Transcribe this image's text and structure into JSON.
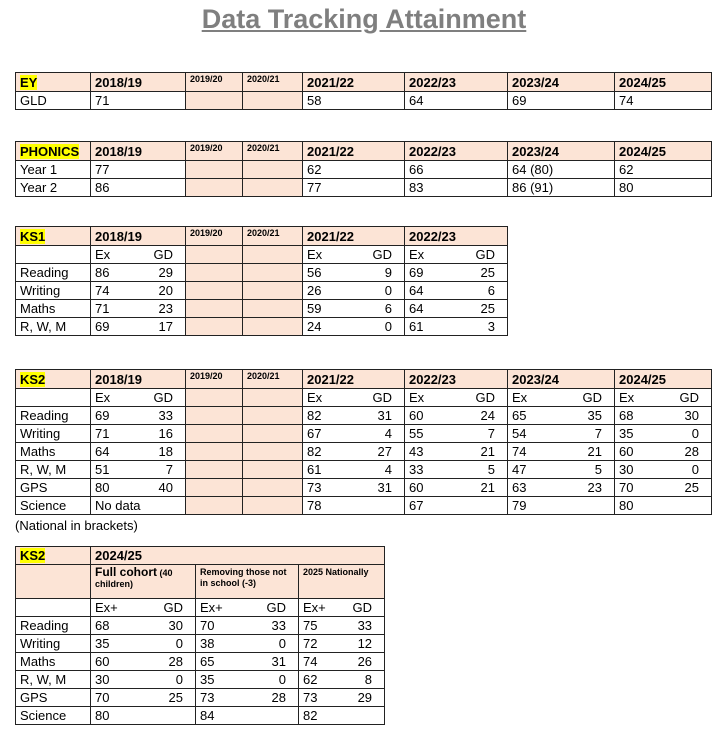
{
  "title": "Data Tracking Attainment",
  "tables": [
    {
      "label": "EY",
      "headers": [
        "2018/19",
        "2019/20",
        "2020/21",
        "2021/22",
        "2022/23",
        "2023/24",
        "2024/25"
      ],
      "rows": [
        {
          "label": "GLD",
          "cells": [
            71,
            null,
            null,
            58,
            64,
            69,
            74
          ]
        }
      ]
    },
    {
      "label": "PHONICS",
      "headers": [
        "2018/19",
        "2019/20",
        "2020/21",
        "2021/22",
        "2022/23",
        "2023/24",
        "2024/25"
      ],
      "rows": [
        {
          "label": "Year 1",
          "cells": [
            77,
            null,
            null,
            62,
            66,
            "64 (80)",
            62
          ]
        },
        {
          "label": "Year 2",
          "cells": [
            86,
            null,
            null,
            77,
            83,
            "86 (91)",
            80
          ]
        }
      ]
    },
    {
      "label": "KS1",
      "headers": [
        "2018/19",
        "2019/20",
        "2020/21",
        "2021/22",
        "2022/23"
      ],
      "sub_headers": [
        [
          "Ex",
          "GD"
        ],
        null,
        null,
        [
          "Ex",
          "GD"
        ],
        [
          "Ex",
          "GD"
        ]
      ],
      "rows": [
        {
          "label": "Reading",
          "cells": [
            [
              86,
              29
            ],
            null,
            null,
            [
              56,
              9
            ],
            [
              69,
              25
            ]
          ]
        },
        {
          "label": "Writing",
          "cells": [
            [
              74,
              20
            ],
            null,
            null,
            [
              26,
              0
            ],
            [
              64,
              6
            ]
          ]
        },
        {
          "label": "Maths",
          "cells": [
            [
              71,
              23
            ],
            null,
            null,
            [
              59,
              6
            ],
            [
              64,
              25
            ]
          ]
        },
        {
          "label": "R, W, M",
          "cells": [
            [
              69,
              17
            ],
            null,
            null,
            [
              24,
              0
            ],
            [
              61,
              3
            ]
          ]
        }
      ]
    },
    {
      "label": "KS2",
      "headers": [
        "2018/19",
        "2019/20",
        "2020/21",
        "2021/22",
        "2022/23",
        "2023/24",
        "2024/25"
      ],
      "sub_headers": [
        [
          "Ex",
          "GD"
        ],
        null,
        null,
        [
          "Ex",
          "GD"
        ],
        [
          "Ex",
          "GD"
        ],
        [
          "Ex",
          "GD"
        ],
        [
          "Ex",
          "GD"
        ]
      ],
      "rows": [
        {
          "label": "Reading",
          "cells": [
            [
              69,
              33
            ],
            null,
            null,
            [
              82,
              31
            ],
            [
              60,
              24
            ],
            [
              65,
              35
            ],
            [
              68,
              30
            ]
          ]
        },
        {
          "label": "Writing",
          "cells": [
            [
              71,
              16
            ],
            null,
            null,
            [
              67,
              4
            ],
            [
              55,
              7
            ],
            [
              54,
              7
            ],
            [
              35,
              0
            ]
          ]
        },
        {
          "label": "Maths",
          "cells": [
            [
              64,
              18
            ],
            null,
            null,
            [
              82,
              27
            ],
            [
              43,
              21
            ],
            [
              74,
              21
            ],
            [
              60,
              28
            ]
          ]
        },
        {
          "label": "R, W, M",
          "cells": [
            [
              51,
              7
            ],
            null,
            null,
            [
              61,
              4
            ],
            [
              33,
              5
            ],
            [
              47,
              5
            ],
            [
              30,
              0
            ]
          ]
        },
        {
          "label": "GPS",
          "cells": [
            [
              80,
              40
            ],
            null,
            null,
            [
              73,
              31
            ],
            [
              60,
              21
            ],
            [
              63,
              23
            ],
            [
              70,
              25
            ]
          ]
        },
        {
          "label": "Science",
          "cells": [
            "No data",
            null,
            null,
            78,
            67,
            79,
            80
          ]
        }
      ],
      "note": "(National in brackets)"
    },
    {
      "label": "KS2",
      "header": "2024/25",
      "groups": [
        {
          "title": "Full cohort",
          "note": "(40 children)"
        },
        {
          "title": "Removing those not in school (-3)"
        },
        {
          "title": "2025 Nationally"
        }
      ],
      "sub_headers": [
        [
          "Ex+",
          "GD"
        ],
        [
          "Ex+",
          "GD"
        ],
        [
          "Ex+",
          "GD"
        ]
      ],
      "rows": [
        {
          "label": "Reading",
          "cells": [
            [
              68,
              30
            ],
            [
              70,
              33
            ],
            [
              75,
              33
            ]
          ]
        },
        {
          "label": "Writing",
          "cells": [
            [
              35,
              0
            ],
            [
              38,
              0
            ],
            [
              72,
              12
            ]
          ]
        },
        {
          "label": "Maths",
          "cells": [
            [
              60,
              28
            ],
            [
              65,
              31
            ],
            [
              74,
              26
            ]
          ]
        },
        {
          "label": "R, W, M",
          "cells": [
            [
              30,
              0
            ],
            [
              35,
              0
            ],
            [
              62,
              8
            ]
          ]
        },
        {
          "label": "GPS",
          "cells": [
            [
              70,
              25
            ],
            [
              73,
              28
            ],
            [
              73,
              29
            ]
          ]
        },
        {
          "label": "Science",
          "cells": [
            80,
            84,
            82
          ]
        }
      ]
    }
  ]
}
